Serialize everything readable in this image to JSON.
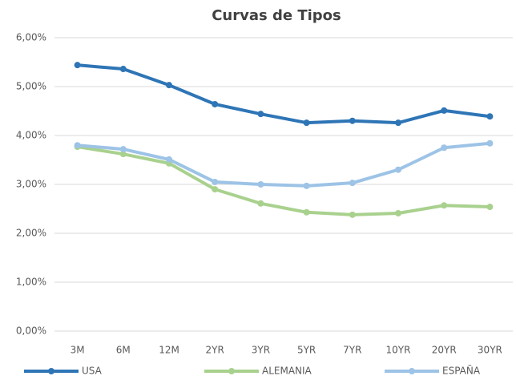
{
  "chart_data": {
    "type": "line",
    "title": "Curvas de Tipos",
    "categories": [
      "3M",
      "6M",
      "12M",
      "2YR",
      "3YR",
      "5YR",
      "7YR",
      "10YR",
      "20YR",
      "30YR"
    ],
    "series": [
      {
        "name": "USA",
        "color": "#2e75b6",
        "values": [
          5.44,
          5.36,
          5.03,
          4.64,
          4.44,
          4.26,
          4.3,
          4.26,
          4.51,
          4.39
        ]
      },
      {
        "name": "ALEMANIA",
        "color": "#a9d18e",
        "values": [
          3.77,
          3.62,
          3.43,
          2.9,
          2.61,
          2.43,
          2.38,
          2.41,
          2.57,
          2.54
        ]
      },
      {
        "name": "ESPAÑA",
        "color": "#9dc3e6",
        "values": [
          3.8,
          3.72,
          3.51,
          3.05,
          3.0,
          2.97,
          3.03,
          3.3,
          3.75,
          3.84
        ]
      }
    ],
    "ylim": [
      0,
      6
    ],
    "yticks": [
      {
        "value": 0,
        "label": "0,00%"
      },
      {
        "value": 1,
        "label": "1,00%"
      },
      {
        "value": 2,
        "label": "2,00%"
      },
      {
        "value": 3,
        "label": "3,00%"
      },
      {
        "value": 4,
        "label": "4,00%"
      },
      {
        "value": 5,
        "label": "5,00%"
      },
      {
        "value": 6,
        "label": "6,00%"
      }
    ],
    "grid": true,
    "legend": "bottom"
  }
}
